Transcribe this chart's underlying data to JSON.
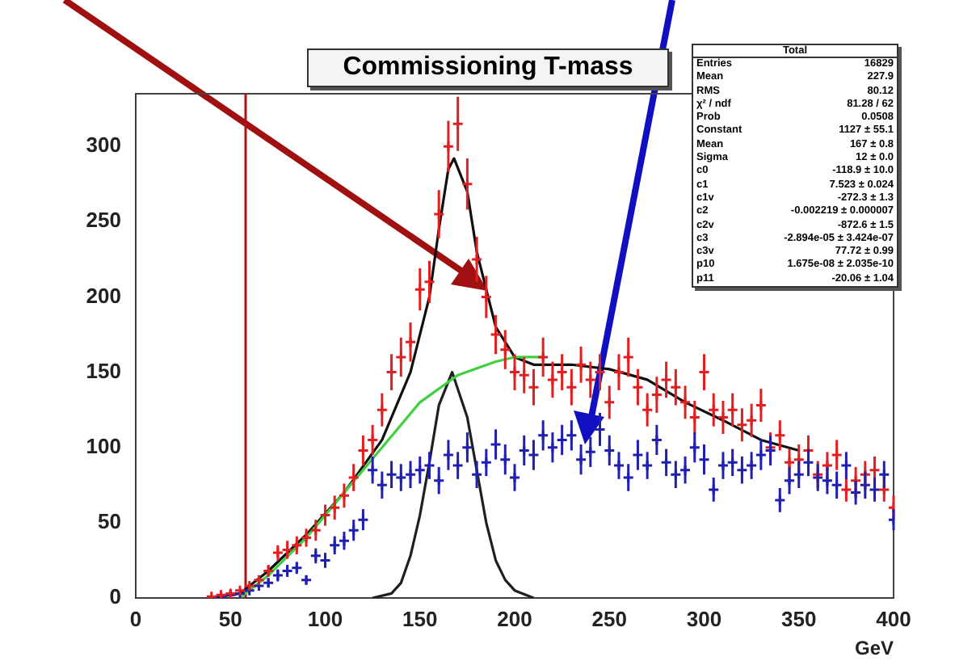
{
  "chart_data": {
    "type": "scatter",
    "title": "Commissioning T-mass",
    "xlabel": "GeV",
    "x": [
      40,
      45,
      50,
      55,
      60,
      65,
      70,
      75,
      80,
      85,
      90,
      95,
      100,
      105,
      110,
      115,
      120,
      125,
      130,
      135,
      140,
      145,
      150,
      155,
      160,
      165,
      170,
      175,
      180,
      185,
      190,
      195,
      200,
      205,
      210,
      215,
      220,
      225,
      230,
      235,
      240,
      245,
      250,
      255,
      260,
      265,
      270,
      275,
      280,
      285,
      290,
      295,
      300,
      305,
      310,
      315,
      320,
      325,
      330,
      335,
      340,
      345,
      350,
      355,
      360,
      365,
      370,
      375,
      380,
      385,
      390,
      395,
      400
    ],
    "series": [
      {
        "type": "scatter",
        "color": "#e02020",
        "marker": "cross",
        "values": [
          1,
          2,
          3,
          5,
          8,
          12,
          18,
          30,
          32,
          35,
          40,
          45,
          55,
          60,
          68,
          80,
          98,
          105,
          125,
          150,
          160,
          170,
          205,
          210,
          255,
          300,
          315,
          275,
          225,
          200,
          175,
          165,
          150,
          148,
          140,
          160,
          145,
          150,
          140,
          155,
          145,
          150,
          130,
          150,
          160,
          140,
          125,
          135,
          145,
          140,
          130,
          120,
          150,
          125,
          120,
          125,
          115,
          118,
          128,
          100,
          108,
          90,
          92,
          98,
          82,
          88,
          95,
          72,
          78,
          82,
          85,
          72,
          60
        ],
        "errors": [
          null,
          null,
          null,
          null,
          null,
          3,
          4,
          5,
          6,
          6,
          6,
          7,
          7,
          8,
          8,
          9,
          10,
          10,
          11,
          12,
          13,
          13,
          14,
          14,
          16,
          17,
          18,
          17,
          15,
          14,
          13,
          13,
          12,
          12,
          12,
          13,
          12,
          12,
          12,
          12,
          12,
          12,
          11,
          12,
          13,
          12,
          11,
          12,
          12,
          12,
          11,
          11,
          12,
          11,
          11,
          11,
          11,
          11,
          11,
          10,
          10,
          9,
          10,
          10,
          9,
          9,
          10,
          8,
          9,
          9,
          9,
          8,
          8
        ]
      },
      {
        "type": "scatter",
        "color": "#2020b0",
        "marker": "cross",
        "values": [
          null,
          1,
          2,
          3,
          5,
          8,
          10,
          15,
          18,
          20,
          12,
          28,
          25,
          35,
          38,
          45,
          52,
          85,
          75,
          82,
          80,
          82,
          85,
          88,
          78,
          95,
          88,
          100,
          82,
          90,
          102,
          92,
          80,
          98,
          95,
          108,
          100,
          105,
          108,
          92,
          97,
          112,
          98,
          88,
          80,
          95,
          88,
          105,
          90,
          82,
          85,
          100,
          92,
          72,
          88,
          90,
          85,
          88,
          95,
          98,
          65,
          78,
          82,
          90,
          80,
          78,
          75,
          88,
          70,
          75,
          72,
          82,
          52
        ],
        "errors": [
          null,
          null,
          null,
          null,
          null,
          null,
          3,
          4,
          4,
          4,
          3,
          5,
          5,
          6,
          6,
          7,
          7,
          9,
          9,
          9,
          9,
          9,
          9,
          9,
          9,
          10,
          9,
          10,
          9,
          9,
          10,
          10,
          9,
          10,
          10,
          10,
          10,
          10,
          10,
          10,
          10,
          11,
          10,
          9,
          9,
          10,
          9,
          10,
          9,
          9,
          9,
          10,
          10,
          8,
          9,
          9,
          9,
          9,
          10,
          10,
          8,
          9,
          9,
          9,
          9,
          9,
          9,
          9,
          8,
          9,
          8,
          9,
          7
        ]
      },
      {
        "type": "line",
        "color": "#40d040",
        "x": [
          55,
          70,
          90,
          110,
          130,
          150,
          170,
          190,
          200,
          215
        ],
        "values": [
          0,
          15,
          40,
          70,
          100,
          130,
          148,
          157,
          160,
          160
        ]
      },
      {
        "type": "line",
        "color": "#202020",
        "x": [
          125,
          135,
          140,
          145,
          150,
          155,
          160,
          167,
          175,
          180,
          185,
          190,
          195,
          200,
          210
        ],
        "values": [
          0,
          3,
          10,
          28,
          55,
          90,
          128,
          150,
          120,
          85,
          50,
          25,
          12,
          5,
          0
        ]
      },
      {
        "type": "line",
        "color": "#101010",
        "x": [
          40,
          55,
          70,
          90,
          110,
          130,
          145,
          155,
          160,
          165,
          168,
          175,
          180,
          190,
          200,
          210,
          230,
          250,
          270,
          290,
          310,
          330,
          350
        ],
        "values": [
          0,
          3,
          18,
          42,
          70,
          105,
          150,
          200,
          245,
          285,
          292,
          270,
          230,
          180,
          160,
          155,
          155,
          152,
          145,
          130,
          118,
          105,
          98
        ]
      }
    ],
    "xlim": [
      0,
      400
    ],
    "xticks": [
      0,
      50,
      100,
      150,
      200,
      250,
      300,
      350,
      400
    ],
    "ylim": [
      0,
      335
    ],
    "yticks": [
      0,
      50,
      100,
      150,
      200,
      250,
      300
    ],
    "ref_lines": [
      {
        "axis": "x",
        "value": 58,
        "color": "#b01010"
      }
    ],
    "grid": false,
    "legend": false,
    "annotations": [
      "Total",
      "Entries",
      "16829",
      "Mean",
      "227.9",
      "RMS",
      "80.12",
      "χ² / ndf",
      "81.28 / 62",
      "Prob",
      "0.0508",
      "Constant",
      "1127 ± 55.1",
      "Mean",
      "167 ± 0.8",
      "Sigma",
      "12 ± 0.0",
      "c0",
      "-118.9 ± 10.0",
      "c1",
      "7.523 ± 0.024",
      "c1v",
      "-272.3 ± 1.3",
      "c2",
      "-0.002219 ± 0.000007",
      "c2v",
      "-872.6 ± 1.5",
      "c3",
      "-2.894e-05 ± 3.424e-07",
      "c3v",
      "77.72 ± 0.99",
      "p10",
      "1.675e-08 ± 2.035e-10",
      "p11",
      "-20.06 ± 1.04"
    ]
  }
}
